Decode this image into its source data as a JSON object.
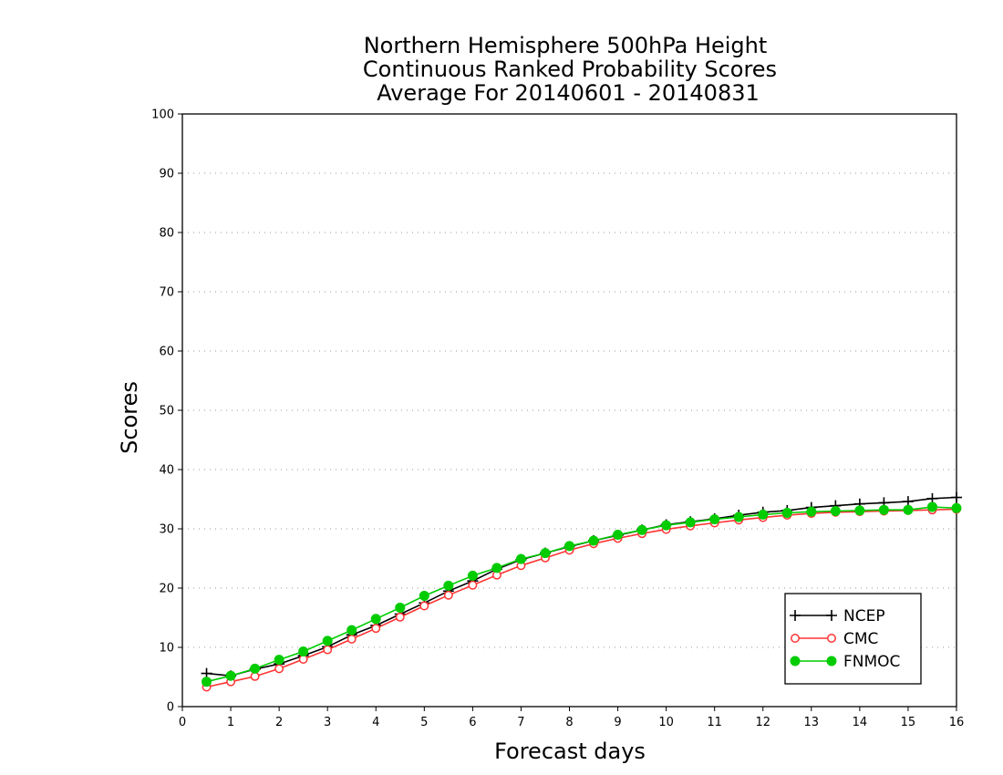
{
  "chart_data": {
    "type": "line",
    "title": [
      "Northern Hemisphere 500hPa Height",
      "Continuous Ranked Probability Scores",
      "Average For 20140601 - 20140831"
    ],
    "xlabel": "Forecast days",
    "ylabel": "Scores",
    "xlim": [
      0,
      16
    ],
    "ylim": [
      0,
      100
    ],
    "xticks": [
      "0",
      "1",
      "2",
      "3",
      "4",
      "5",
      "6",
      "7",
      "8",
      "9",
      "10",
      "11",
      "12",
      "13",
      "14",
      "15",
      "16"
    ],
    "yticks": [
      "0",
      "10",
      "20",
      "30",
      "40",
      "50",
      "60",
      "70",
      "80",
      "90",
      "100"
    ],
    "grid": "horizontal-dotted",
    "legend_position": "lower-right",
    "x": [
      0.5,
      1,
      1.5,
      2,
      2.5,
      3,
      3.5,
      4,
      4.5,
      5,
      5.5,
      6,
      6.5,
      7,
      7.5,
      8,
      8.5,
      9,
      9.5,
      10,
      10.5,
      11,
      11.5,
      12,
      12.5,
      13,
      13.5,
      14,
      14.5,
      15,
      15.5,
      16
    ],
    "series": [
      {
        "name": "NCEP",
        "color": "#000000",
        "marker": "plus",
        "values": [
          5.6,
          5.2,
          6.3,
          7.2,
          8.6,
          10.1,
          12.1,
          13.7,
          15.6,
          17.5,
          19.5,
          21.2,
          23.2,
          24.8,
          25.9,
          27.0,
          28.0,
          28.9,
          29.8,
          30.7,
          31.2,
          31.7,
          32.3,
          32.8,
          33.1,
          33.6,
          33.9,
          34.2,
          34.4,
          34.6,
          35.1,
          35.3
        ]
      },
      {
        "name": "CMC",
        "color": "#ff3333",
        "marker": "open-circle",
        "values": [
          3.3,
          4.2,
          5.1,
          6.4,
          8.0,
          9.6,
          11.4,
          13.2,
          15.1,
          17.0,
          18.8,
          20.5,
          22.2,
          23.8,
          25.1,
          26.4,
          27.5,
          28.4,
          29.2,
          29.9,
          30.5,
          31.0,
          31.5,
          31.9,
          32.3,
          32.6,
          32.8,
          32.9,
          33.0,
          33.1,
          33.2,
          33.3
        ]
      },
      {
        "name": "FNMOC",
        "color": "#00cc00",
        "marker": "filled-circle",
        "values": [
          4.2,
          5.2,
          6.4,
          7.9,
          9.3,
          11.1,
          12.9,
          14.8,
          16.7,
          18.7,
          20.4,
          22.1,
          23.4,
          24.9,
          25.9,
          27.1,
          28.0,
          29.0,
          29.8,
          30.6,
          31.1,
          31.6,
          32.0,
          32.4,
          32.7,
          32.9,
          33.0,
          33.1,
          33.2,
          33.2,
          33.7,
          33.5
        ]
      }
    ]
  }
}
